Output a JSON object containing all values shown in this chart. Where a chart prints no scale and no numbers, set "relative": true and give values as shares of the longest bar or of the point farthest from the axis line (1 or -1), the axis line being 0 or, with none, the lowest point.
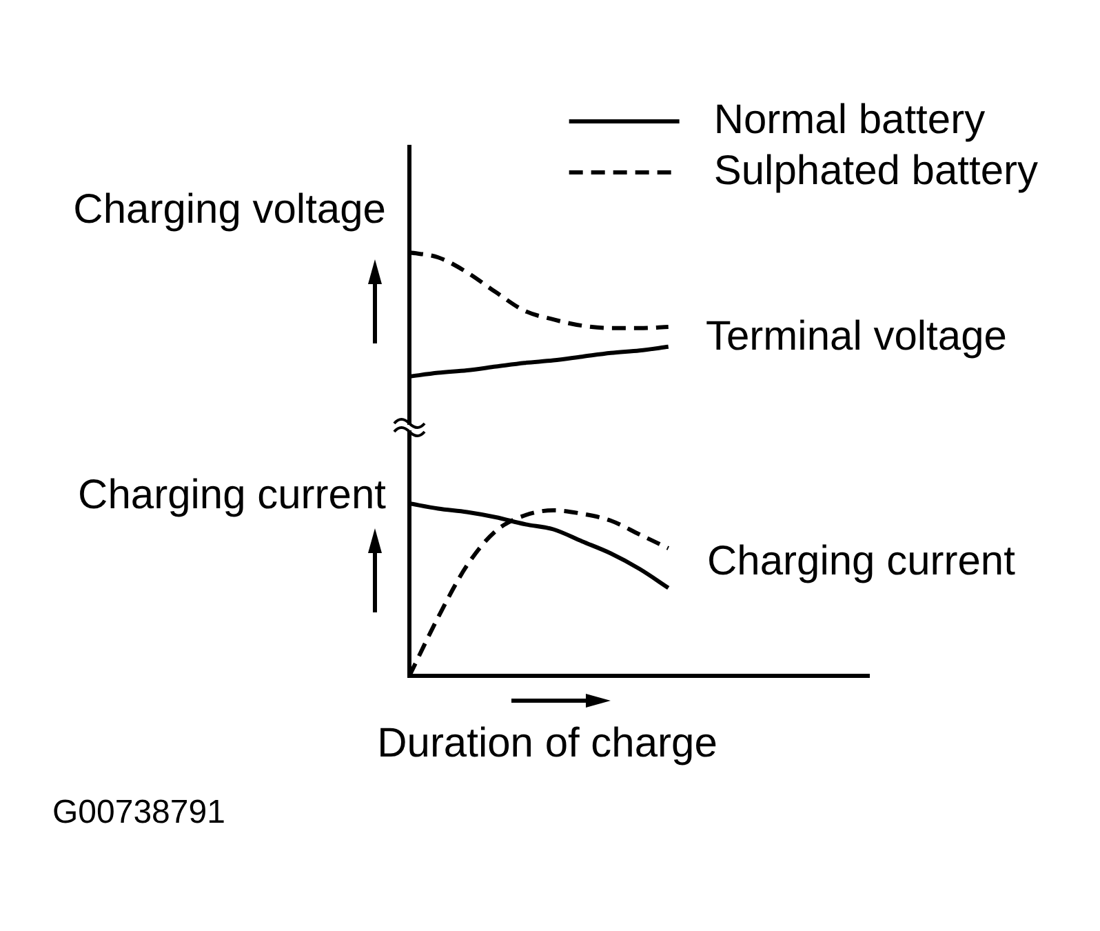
{
  "chart_data": [
    {
      "type": "line",
      "ylabel": "Charging voltage",
      "relative": true,
      "legend": "top right",
      "marker": "none",
      "categories": [
        null,
        null,
        null,
        null,
        null,
        null,
        null,
        null,
        null,
        null,
        null,
        null,
        null,
        null,
        null,
        null,
        null
      ],
      "series": [
        {
          "name": "Normal battery",
          "color": "#000000",
          "line_style": "solid",
          "values": [
            0,
            0.03,
            0.05,
            0.08,
            0.11,
            0.13,
            0.16,
            0.19,
            0.21,
            0.24,
            null,
            null,
            null,
            null,
            null,
            null,
            null
          ]
        },
        {
          "name": "Sulphated battery",
          "color": "#000000",
          "line_style": "dashed",
          "values": [
            1,
            0.96,
            0.84,
            0.68,
            0.53,
            0.46,
            0.41,
            0.39,
            0.39,
            0.4,
            null,
            null,
            null,
            null,
            null,
            null,
            null
          ]
        }
      ],
      "annotations": [
        "Terminal voltage"
      ]
    },
    {
      "type": "line",
      "ylabel": "Charging current",
      "xlabel": "Duration of charge",
      "relative": true,
      "marker": "none",
      "categories": [
        null,
        null,
        null,
        null,
        null,
        null,
        null,
        null,
        null,
        null,
        null,
        null,
        null,
        null,
        null,
        null,
        null
      ],
      "series": [
        {
          "color": "#000000",
          "line_style": "solid",
          "values": [
            1,
            0.97,
            0.95,
            0.92,
            0.88,
            0.85,
            0.78,
            0.71,
            0.62,
            0.51,
            null,
            null,
            null,
            null,
            null,
            null,
            null
          ]
        },
        {
          "color": "#000000",
          "line_style": "dashed",
          "values": [
            0,
            0.34,
            0.64,
            0.84,
            0.93,
            0.96,
            0.94,
            0.9,
            0.82,
            0.74,
            null,
            null,
            null,
            null,
            null,
            null,
            null
          ]
        }
      ],
      "annotations": [
        "Charging current",
        "G00738791"
      ]
    }
  ]
}
